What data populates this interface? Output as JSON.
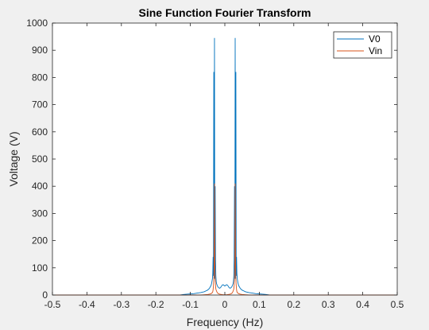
{
  "chart_data": {
    "type": "line",
    "title": "Sine Function Fourier Transform",
    "xlabel": "Frequency (Hz)",
    "ylabel": "Voltage (V)",
    "xlim": [
      -0.5,
      0.5
    ],
    "ylim": [
      0,
      1000
    ],
    "x_ticks": [
      -0.5,
      -0.4,
      -0.3,
      -0.2,
      -0.1,
      0,
      0.1,
      0.2,
      0.3,
      0.4,
      0.5
    ],
    "x_tick_labels": [
      "-0.5",
      "-0.4",
      "-0.3",
      "-0.2",
      "-0.1",
      "0",
      "0.1",
      "0.2",
      "0.3",
      "0.4",
      "0.5"
    ],
    "y_ticks": [
      0,
      100,
      200,
      300,
      400,
      500,
      600,
      700,
      800,
      900,
      1000
    ],
    "y_tick_labels": [
      "0",
      "100",
      "200",
      "300",
      "400",
      "500",
      "600",
      "700",
      "800",
      "900",
      "1000"
    ],
    "grid": false,
    "legend_position": "top-right",
    "series": [
      {
        "name": "V0",
        "color": "#0072bd",
        "x": [
          -0.5,
          -0.13,
          -0.12,
          -0.11,
          -0.1,
          -0.09,
          -0.08,
          -0.07,
          -0.06,
          -0.055,
          -0.05,
          -0.045,
          -0.04,
          -0.038,
          -0.036,
          -0.035,
          -0.034,
          -0.033,
          -0.032,
          -0.031,
          -0.03,
          -0.029,
          -0.028,
          -0.027,
          -0.026,
          -0.025,
          -0.024,
          -0.022,
          -0.02,
          -0.018,
          -0.015,
          -0.012,
          -0.01,
          -0.008,
          -0.005,
          -0.002,
          0,
          0.002,
          0.005,
          0.008,
          0.01,
          0.012,
          0.015,
          0.018,
          0.02,
          0.022,
          0.024,
          0.025,
          0.026,
          0.027,
          0.028,
          0.029,
          0.03,
          0.031,
          0.032,
          0.033,
          0.034,
          0.035,
          0.036,
          0.038,
          0.04,
          0.045,
          0.05,
          0.055,
          0.06,
          0.07,
          0.08,
          0.09,
          0.1,
          0.11,
          0.12,
          0.13,
          0.5
        ],
        "y": [
          0,
          0,
          2,
          3,
          4,
          5,
          7,
          9,
          12,
          15,
          18,
          24,
          35,
          45,
          60,
          80,
          140,
          70,
          820,
          60,
          945,
          60,
          400,
          130,
          70,
          50,
          42,
          35,
          30,
          27,
          25,
          28,
          32,
          36,
          38,
          35,
          33,
          35,
          38,
          36,
          32,
          28,
          25,
          27,
          30,
          35,
          42,
          50,
          70,
          130,
          400,
          60,
          945,
          60,
          820,
          70,
          140,
          80,
          60,
          45,
          35,
          24,
          18,
          15,
          12,
          9,
          7,
          5,
          4,
          3,
          2,
          0,
          0
        ]
      },
      {
        "name": "Vin",
        "color": "#d95319",
        "x": [
          -0.5,
          -0.07,
          -0.06,
          -0.05,
          -0.045,
          -0.04,
          -0.037,
          -0.035,
          -0.034,
          -0.033,
          -0.032,
          -0.031,
          -0.03,
          -0.029,
          -0.028,
          -0.027,
          -0.026,
          -0.024,
          -0.022,
          -0.02,
          -0.015,
          -0.01,
          -0.005,
          0,
          0.005,
          0.01,
          0.015,
          0.02,
          0.022,
          0.024,
          0.026,
          0.027,
          0.028,
          0.029,
          0.03,
          0.031,
          0.032,
          0.033,
          0.034,
          0.035,
          0.037,
          0.04,
          0.045,
          0.05,
          0.06,
          0.07,
          0.5
        ],
        "y": [
          0,
          0,
          1,
          2,
          3,
          5,
          8,
          12,
          20,
          35,
          60,
          120,
          410,
          120,
          60,
          35,
          22,
          14,
          9,
          6,
          3,
          2,
          1,
          1,
          1,
          2,
          3,
          6,
          9,
          14,
          22,
          35,
          60,
          120,
          410,
          120,
          60,
          35,
          20,
          12,
          8,
          5,
          3,
          2,
          1,
          0,
          0
        ]
      }
    ]
  }
}
